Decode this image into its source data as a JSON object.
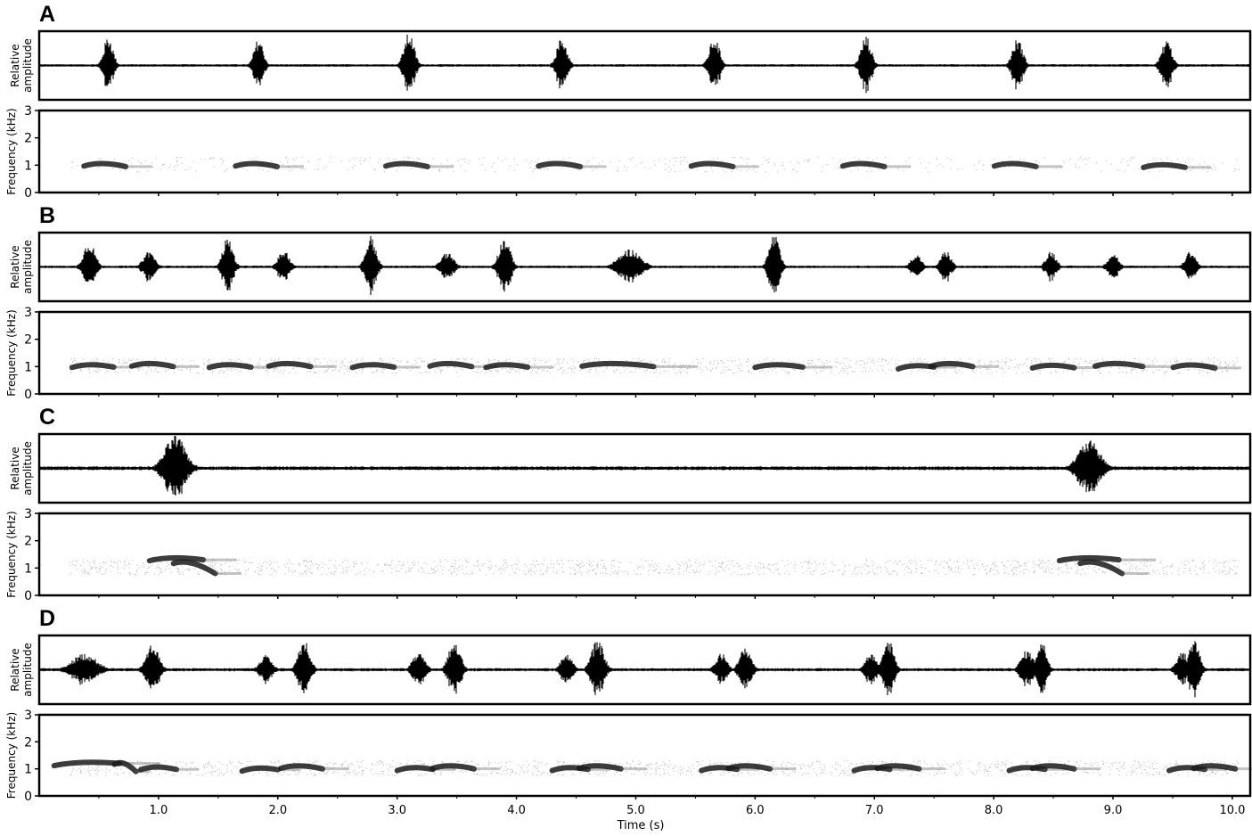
{
  "chart_data": {
    "type": "waveform-spectrogram",
    "xlabel": "Time (s)",
    "x_ticks": [
      "1.0",
      "2.0",
      "3.0",
      "4.0",
      "5.0",
      "6.0",
      "7.0",
      "8.0",
      "9.0",
      "10.0"
    ],
    "xlim": [
      0.0,
      10.15
    ],
    "wave_ylabel_line1": "Relative",
    "wave_ylabel_line2": "amplitude",
    "spec_ylabel": "Frequency (kHz)",
    "spec_y_ticks": [
      "0",
      "1",
      "2",
      "3"
    ],
    "spec_ylim": [
      0,
      3
    ],
    "panels": [
      {
        "label": "A",
        "wave_noise": 0.04,
        "bursts": [
          {
            "t": 0.58,
            "w": 0.18,
            "a": 0.9
          },
          {
            "t": 1.84,
            "w": 0.18,
            "a": 0.82
          },
          {
            "t": 3.1,
            "w": 0.2,
            "a": 1.0
          },
          {
            "t": 4.38,
            "w": 0.2,
            "a": 0.85
          },
          {
            "t": 5.66,
            "w": 0.2,
            "a": 0.85
          },
          {
            "t": 6.93,
            "w": 0.2,
            "a": 0.9
          },
          {
            "t": 8.2,
            "w": 0.2,
            "a": 0.82
          },
          {
            "t": 9.45,
            "w": 0.2,
            "a": 0.78
          }
        ],
        "notes_khz": [
          {
            "t": 0.55,
            "w": 0.35,
            "f0": 1.0,
            "f1": 0.95
          },
          {
            "t": 1.82,
            "w": 0.35,
            "f0": 1.0,
            "f1": 0.95
          },
          {
            "t": 3.08,
            "w": 0.35,
            "f0": 1.0,
            "f1": 0.95
          },
          {
            "t": 4.36,
            "w": 0.35,
            "f0": 1.0,
            "f1": 0.95
          },
          {
            "t": 5.64,
            "w": 0.35,
            "f0": 1.0,
            "f1": 0.95
          },
          {
            "t": 6.91,
            "w": 0.35,
            "f0": 1.0,
            "f1": 0.95
          },
          {
            "t": 8.18,
            "w": 0.35,
            "f0": 1.0,
            "f1": 0.95
          },
          {
            "t": 9.43,
            "w": 0.35,
            "f0": 0.95,
            "f1": 0.92
          }
        ]
      },
      {
        "label": "B",
        "wave_noise": 0.04,
        "bursts": [
          {
            "t": 0.42,
            "w": 0.22,
            "a": 0.8
          },
          {
            "t": 0.92,
            "w": 0.22,
            "a": 0.5
          },
          {
            "t": 1.58,
            "w": 0.2,
            "a": 0.9
          },
          {
            "t": 2.05,
            "w": 0.22,
            "a": 0.5
          },
          {
            "t": 2.78,
            "w": 0.2,
            "a": 0.95
          },
          {
            "t": 3.42,
            "w": 0.24,
            "a": 0.45
          },
          {
            "t": 3.9,
            "w": 0.22,
            "a": 0.9
          },
          {
            "t": 4.95,
            "w": 0.42,
            "a": 0.55
          },
          {
            "t": 6.16,
            "w": 0.2,
            "a": 1.0
          },
          {
            "t": 7.35,
            "w": 0.2,
            "a": 0.4
          },
          {
            "t": 7.6,
            "w": 0.2,
            "a": 0.5
          },
          {
            "t": 8.48,
            "w": 0.2,
            "a": 0.5
          },
          {
            "t": 9.0,
            "w": 0.2,
            "a": 0.45
          },
          {
            "t": 9.65,
            "w": 0.2,
            "a": 0.5
          }
        ],
        "notes_khz": [
          {
            "t": 0.45,
            "w": 0.35,
            "f0": 1.0,
            "f1": 0.98
          },
          {
            "t": 0.95,
            "w": 0.35,
            "f0": 1.05,
            "f1": 1.0
          },
          {
            "t": 1.6,
            "w": 0.35,
            "f0": 1.0,
            "f1": 0.98
          },
          {
            "t": 2.1,
            "w": 0.35,
            "f0": 1.05,
            "f1": 1.0
          },
          {
            "t": 2.8,
            "w": 0.35,
            "f0": 1.0,
            "f1": 0.98
          },
          {
            "t": 3.45,
            "w": 0.35,
            "f0": 1.05,
            "f1": 1.0
          },
          {
            "t": 3.92,
            "w": 0.35,
            "f0": 1.0,
            "f1": 0.98
          },
          {
            "t": 4.85,
            "w": 0.6,
            "f0": 1.05,
            "f1": 1.0
          },
          {
            "t": 6.2,
            "w": 0.4,
            "f0": 1.0,
            "f1": 0.98
          },
          {
            "t": 7.35,
            "w": 0.3,
            "f0": 0.95,
            "f1": 0.98
          },
          {
            "t": 7.65,
            "w": 0.35,
            "f0": 1.05,
            "f1": 1.0
          },
          {
            "t": 8.5,
            "w": 0.35,
            "f0": 0.98,
            "f1": 0.96
          },
          {
            "t": 9.05,
            "w": 0.4,
            "f0": 1.05,
            "f1": 1.0
          },
          {
            "t": 9.68,
            "w": 0.35,
            "f0": 1.0,
            "f1": 0.95
          }
        ]
      },
      {
        "label": "C",
        "wave_noise": 0.06,
        "bursts": [
          {
            "t": 1.14,
            "w": 0.4,
            "a": 1.0
          },
          {
            "t": 8.8,
            "w": 0.42,
            "a": 0.85
          }
        ],
        "notes_khz": [
          {
            "t": 1.15,
            "w": 0.45,
            "f0": 1.3,
            "f1": 1.3
          },
          {
            "t": 1.3,
            "w": 0.35,
            "f0": 1.2,
            "f1": 0.8
          },
          {
            "t": 8.8,
            "w": 0.5,
            "f0": 1.3,
            "f1": 1.3
          },
          {
            "t": 8.9,
            "w": 0.35,
            "f0": 1.2,
            "f1": 0.8
          }
        ]
      },
      {
        "label": "D",
        "wave_noise": 0.05,
        "bursts": [
          {
            "t": 0.38,
            "w": 0.48,
            "a": 0.5
          },
          {
            "t": 0.95,
            "w": 0.24,
            "a": 0.8
          },
          {
            "t": 1.9,
            "w": 0.24,
            "a": 0.45
          },
          {
            "t": 2.22,
            "w": 0.22,
            "a": 0.9
          },
          {
            "t": 3.18,
            "w": 0.24,
            "a": 0.5
          },
          {
            "t": 3.48,
            "w": 0.22,
            "a": 0.95
          },
          {
            "t": 4.42,
            "w": 0.22,
            "a": 0.5
          },
          {
            "t": 4.68,
            "w": 0.24,
            "a": 0.9
          },
          {
            "t": 5.72,
            "w": 0.22,
            "a": 0.5
          },
          {
            "t": 5.92,
            "w": 0.22,
            "a": 0.7
          },
          {
            "t": 6.97,
            "w": 0.22,
            "a": 0.5
          },
          {
            "t": 7.12,
            "w": 0.2,
            "a": 0.95
          },
          {
            "t": 8.28,
            "w": 0.24,
            "a": 0.6
          },
          {
            "t": 8.4,
            "w": 0.2,
            "a": 0.9
          },
          {
            "t": 9.58,
            "w": 0.22,
            "a": 0.55
          },
          {
            "t": 9.68,
            "w": 0.2,
            "a": 1.0
          }
        ],
        "notes_khz": [
          {
            "t": 0.4,
            "w": 0.55,
            "f0": 1.15,
            "f1": 1.2
          },
          {
            "t": 0.72,
            "w": 0.18,
            "f0": 1.2,
            "f1": 0.9
          },
          {
            "t": 1.0,
            "w": 0.3,
            "f0": 1.0,
            "f1": 0.98
          },
          {
            "t": 1.85,
            "w": 0.3,
            "f0": 0.95,
            "f1": 0.97
          },
          {
            "t": 2.2,
            "w": 0.35,
            "f0": 1.05,
            "f1": 1.0
          },
          {
            "t": 3.15,
            "w": 0.3,
            "f0": 0.97,
            "f1": 0.98
          },
          {
            "t": 3.47,
            "w": 0.35,
            "f0": 1.05,
            "f1": 1.0
          },
          {
            "t": 4.45,
            "w": 0.3,
            "f0": 0.97,
            "f1": 0.98
          },
          {
            "t": 4.7,
            "w": 0.35,
            "f0": 1.05,
            "f1": 1.0
          },
          {
            "t": 5.7,
            "w": 0.3,
            "f0": 0.97,
            "f1": 0.98
          },
          {
            "t": 5.95,
            "w": 0.35,
            "f0": 1.05,
            "f1": 1.0
          },
          {
            "t": 6.98,
            "w": 0.3,
            "f0": 0.97,
            "f1": 0.98
          },
          {
            "t": 7.2,
            "w": 0.35,
            "f0": 1.05,
            "f1": 1.0
          },
          {
            "t": 8.28,
            "w": 0.3,
            "f0": 0.97,
            "f1": 0.98
          },
          {
            "t": 8.5,
            "w": 0.35,
            "f0": 1.05,
            "f1": 1.0
          },
          {
            "t": 9.62,
            "w": 0.3,
            "f0": 0.97,
            "f1": 0.98
          },
          {
            "t": 9.85,
            "w": 0.35,
            "f0": 1.05,
            "f1": 1.0
          }
        ]
      }
    ]
  }
}
